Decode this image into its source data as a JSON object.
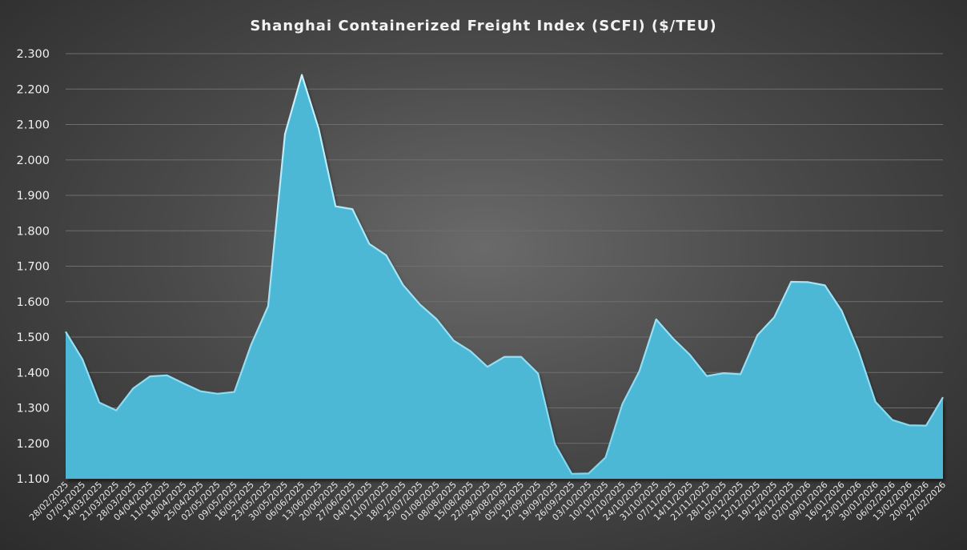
{
  "chart_data": {
    "type": "area",
    "title": "Shanghai Containerized Freight Index (SCFI) ($/TEU)",
    "xlabel": "",
    "ylabel": "",
    "ylim": [
      1100,
      2300
    ],
    "yticks": [
      "1.100",
      "1.200",
      "1.300",
      "1.400",
      "1.500",
      "1.600",
      "1.700",
      "1.800",
      "1.900",
      "2.000",
      "2.100",
      "2.200",
      "2.300"
    ],
    "grid": true,
    "fill_color": "#4eb8d6",
    "categories": [
      "28/02/2025",
      "07/03/2025",
      "14/03/2025",
      "21/03/2025",
      "28/03/2025",
      "04/04/2025",
      "11/04/2025",
      "18/04/2025",
      "25/04/2025",
      "02/05/2025",
      "09/05/2025",
      "16/05/2025",
      "23/05/2025",
      "30/05/2025",
      "06/06/2025",
      "13/06/2025",
      "20/06/2025",
      "27/06/2025",
      "04/07/2025",
      "11/07/2025",
      "18/07/2025",
      "25/07/2025",
      "01/08/2025",
      "08/08/2025",
      "15/08/2025",
      "22/08/2025",
      "29/08/2025",
      "05/09/2025",
      "12/09/2025",
      "19/09/2025",
      "26/09/2025",
      "03/10/2025",
      "10/10/2025",
      "17/10/2025",
      "24/10/2025",
      "31/10/2025",
      "07/11/2025",
      "14/11/2025",
      "21/11/2025",
      "28/11/2025",
      "05/12/2025",
      "12/12/2025",
      "19/12/2025",
      "26/12/2025",
      "02/01/2026",
      "09/01/2026",
      "16/01/2026",
      "23/01/2026",
      "30/01/2026",
      "06/02/2026",
      "13/02/2026",
      "20/02/2026",
      "27/02/2026"
    ],
    "values": [
      1515,
      1437,
      1315,
      1293,
      1355,
      1389,
      1392,
      1369,
      1347,
      1340,
      1345,
      1479,
      1587,
      2073,
      2240,
      2088,
      1869,
      1861,
      1763,
      1731,
      1647,
      1592,
      1550,
      1490,
      1460,
      1416,
      1444,
      1444,
      1397,
      1198,
      1114,
      1115,
      1160,
      1311,
      1403,
      1550,
      1496,
      1450,
      1390,
      1398,
      1395,
      1505,
      1556,
      1656,
      1655,
      1646,
      1574,
      1460,
      1317,
      1266,
      1251,
      1250,
      1330
    ]
  }
}
